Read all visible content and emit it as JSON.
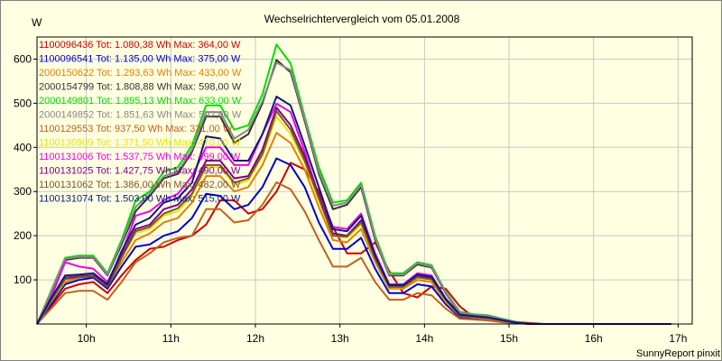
{
  "chart_data": {
    "type": "line",
    "title": "Wechselrichtervergleich vom 05.01.2008",
    "ylabel": "W",
    "xlabel": "",
    "footer": "SunnyReport pinxit",
    "x_ticks": [
      "10h",
      "11h",
      "12h",
      "13h",
      "14h",
      "15h",
      "16h",
      "17h"
    ],
    "x_tick_values": [
      10,
      11,
      12,
      13,
      14,
      15,
      16,
      17
    ],
    "y_ticks": [
      100,
      200,
      300,
      400,
      500,
      600
    ],
    "xlim": [
      9.4167,
      17.1667
    ],
    "ylim": [
      0,
      650
    ],
    "grid": true,
    "legend_position": "top-left",
    "times": [
      9.4167,
      9.5833,
      9.75,
      9.9167,
      10.0833,
      10.25,
      10.4167,
      10.5833,
      10.75,
      10.9167,
      11.0833,
      11.25,
      11.4167,
      11.5833,
      11.75,
      11.9167,
      12.0833,
      12.25,
      12.4167,
      12.5833,
      12.75,
      12.9167,
      13.0833,
      13.25,
      13.4167,
      13.5833,
      13.75,
      13.9167,
      14.0833,
      14.25,
      14.4167,
      14.5833,
      14.75,
      14.9167,
      15.0833,
      15.25,
      15.4167,
      15.5833,
      15.75,
      15.9167,
      16.0833,
      16.25,
      16.4167,
      16.5833,
      16.75,
      16.9167
    ],
    "series": [
      {
        "name": "1100096436",
        "legend": "1100096436 Tot: 1.080,38 Wh Max: 364,00 W",
        "color": "#cc0000",
        "values": [
          0,
          40,
          80,
          90,
          95,
          70,
          110,
          145,
          170,
          175,
          190,
          200,
          225,
          280,
          280,
          250,
          260,
          300,
          365,
          350,
          300,
          220,
          160,
          160,
          185,
          120,
          70,
          60,
          85,
          80,
          40,
          15,
          10,
          10,
          5,
          2,
          0,
          0,
          0,
          0,
          0,
          0,
          0,
          0,
          0,
          0
        ]
      },
      {
        "name": "1100096541",
        "legend": "1100096541 Tot: 1.135,00 Wh Max: 375,00 W",
        "color": "#0000cc",
        "values": [
          0,
          45,
          90,
          100,
          105,
          80,
          130,
          175,
          180,
          200,
          210,
          240,
          295,
          290,
          260,
          270,
          310,
          375,
          360,
          310,
          230,
          170,
          170,
          195,
          125,
          70,
          70,
          90,
          85,
          45,
          15,
          12,
          10,
          5,
          2,
          0,
          0,
          0,
          0,
          0,
          0,
          0,
          0,
          0,
          0,
          0
        ]
      },
      {
        "name": "2000150622",
        "legend": "2000150622 Tot: 1.293,63 Wh Max: 433,00 W",
        "color": "#e08000",
        "values": [
          0,
          50,
          95,
          105,
          110,
          85,
          140,
          190,
          205,
          230,
          240,
          275,
          335,
          335,
          300,
          310,
          360,
          433,
          410,
          350,
          265,
          190,
          185,
          215,
          140,
          80,
          80,
          100,
          95,
          50,
          18,
          15,
          12,
          7,
          3,
          0,
          0,
          0,
          0,
          0,
          0,
          0,
          0,
          0,
          0,
          0
        ]
      },
      {
        "name": "2000154799",
        "legend": "2000154799 Tot: 1.808,88 Wh Max: 598,00 W",
        "color": "#333333",
        "values": [
          0,
          70,
          145,
          150,
          150,
          110,
          180,
          255,
          290,
          330,
          340,
          390,
          470,
          470,
          410,
          430,
          500,
          598,
          570,
          460,
          340,
          260,
          270,
          310,
          190,
          110,
          110,
          135,
          128,
          70,
          25,
          20,
          18,
          10,
          4,
          0,
          0,
          0,
          0,
          0,
          0,
          0,
          0,
          0,
          0,
          0
        ]
      },
      {
        "name": "2000149801",
        "legend": "2000149801 Tot: 1.895,13 Wh Max: 633,00 W",
        "color": "#00dd00",
        "values": [
          0,
          75,
          150,
          155,
          155,
          115,
          190,
          280,
          300,
          345,
          355,
          405,
          495,
          495,
          440,
          450,
          520,
          633,
          590,
          470,
          355,
          275,
          280,
          320,
          200,
          115,
          115,
          140,
          133,
          73,
          28,
          22,
          20,
          12,
          5,
          0,
          0,
          0,
          0,
          0,
          0,
          0,
          0,
          0,
          0,
          0
        ]
      },
      {
        "name": "2000149852",
        "legend": "2000149852 Tot: 1.851,63 Wh Max: 592,00 W",
        "color": "#888888",
        "values": [
          0,
          72,
          148,
          152,
          152,
          112,
          185,
          265,
          295,
          335,
          345,
          395,
          480,
          480,
          420,
          440,
          505,
          592,
          575,
          465,
          345,
          268,
          275,
          315,
          195,
          112,
          112,
          138,
          130,
          72,
          26,
          21,
          19,
          11,
          4,
          0,
          0,
          0,
          0,
          0,
          0,
          0,
          0,
          0,
          0,
          0
        ]
      },
      {
        "name": "1100129553",
        "legend": "1100129553 Tot: 937,50 Wh Max: 321,00 W",
        "color": "#c06020",
        "values": [
          0,
          35,
          70,
          75,
          75,
          55,
          95,
          140,
          160,
          185,
          195,
          200,
          260,
          260,
          230,
          235,
          270,
          321,
          305,
          255,
          190,
          130,
          130,
          150,
          95,
          55,
          55,
          70,
          65,
          35,
          12,
          10,
          8,
          4,
          2,
          0,
          0,
          0,
          0,
          0,
          0,
          0,
          0,
          0,
          0,
          0
        ]
      },
      {
        "name": "1100130909",
        "legend": "1100130909 Tot: 1.371,50 Wh Max: 470,00 W",
        "color": "#e6e600",
        "values": [
          0,
          52,
          100,
          110,
          112,
          88,
          150,
          205,
          215,
          245,
          255,
          290,
          355,
          355,
          315,
          325,
          380,
          470,
          430,
          365,
          280,
          200,
          195,
          225,
          145,
          83,
          83,
          105,
          100,
          52,
          19,
          16,
          13,
          8,
          3,
          0,
          0,
          0,
          0,
          0,
          0,
          0,
          0,
          0,
          0,
          0
        ]
      },
      {
        "name": "1100131006",
        "legend": "1100131006 Tot: 1.537,75 Wh Max: 499,00 W",
        "color": "#ee00ee",
        "values": [
          0,
          60,
          140,
          130,
          125,
          95,
          160,
          245,
          255,
          280,
          295,
          335,
          400,
          400,
          360,
          360,
          430,
          499,
          480,
          390,
          290,
          220,
          215,
          250,
          160,
          90,
          90,
          115,
          110,
          58,
          22,
          18,
          15,
          9,
          3,
          0,
          0,
          0,
          0,
          0,
          0,
          0,
          0,
          0,
          0,
          0
        ]
      },
      {
        "name": "1100131025",
        "legend": "1100131025 Tot: 1.427,75 Wh Max: 490,00 W",
        "color": "#800080",
        "values": [
          0,
          55,
          105,
          108,
          110,
          86,
          155,
          215,
          225,
          260,
          270,
          305,
          370,
          370,
          330,
          335,
          395,
          490,
          450,
          380,
          290,
          205,
          200,
          235,
          150,
          85,
          85,
          108,
          103,
          55,
          20,
          17,
          14,
          8,
          3,
          0,
          0,
          0,
          0,
          0,
          0,
          0,
          0,
          0,
          0,
          0
        ]
      },
      {
        "name": "1100131062",
        "legend": "1100131062 Tot: 1.386,00 Wh Max: 482,00 W",
        "color": "#7a5230",
        "values": [
          0,
          53,
          102,
          106,
          108,
          84,
          150,
          210,
          220,
          250,
          262,
          295,
          360,
          360,
          320,
          330,
          385,
          482,
          440,
          370,
          285,
          200,
          198,
          230,
          147,
          84,
          84,
          106,
          101,
          54,
          19,
          16,
          13,
          8,
          3,
          0,
          0,
          0,
          0,
          0,
          0,
          0,
          0,
          0,
          0,
          0
        ]
      },
      {
        "name": "1100131074",
        "legend": "1100131074 Tot: 1.503,00 Wh Max: 515,00 W",
        "color": "#0a1a80",
        "values": [
          0,
          58,
          110,
          112,
          115,
          90,
          165,
          225,
          240,
          275,
          285,
          320,
          425,
          420,
          370,
          370,
          430,
          515,
          495,
          405,
          310,
          215,
          210,
          245,
          155,
          88,
          88,
          112,
          107,
          57,
          21,
          18,
          15,
          9,
          3,
          0,
          0,
          0,
          0,
          0,
          0,
          0,
          0,
          0,
          0,
          0
        ]
      }
    ]
  }
}
